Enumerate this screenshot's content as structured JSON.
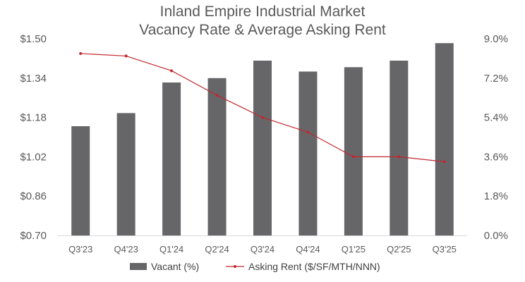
{
  "chart_data": {
    "type": "bar",
    "title": [
      "Inland Empire Industrial Market",
      "Vacancy Rate & Average Asking Rent"
    ],
    "categories": [
      "Q3'23",
      "Q4'23",
      "Q1'24",
      "Q2'24",
      "Q3'24",
      "Q4'24",
      "Q1'25",
      "Q2'25",
      "Q3'25"
    ],
    "y_left": {
      "min": 0.7,
      "max": 1.5,
      "ticks": [
        "$1.50",
        "$1.34",
        "$1.18",
        "$1.02",
        "$0.86",
        "$0.70"
      ]
    },
    "y_right": {
      "min": 0.0,
      "max": 9.0,
      "ticks": [
        "9.0%",
        "7.2%",
        "5.4%",
        "3.6%",
        "1.8%",
        "0.0%"
      ]
    },
    "series": [
      {
        "name": "Vacant (%)",
        "type": "bar",
        "axis": "right",
        "color": "#666669",
        "values": [
          5.0,
          5.6,
          7.0,
          7.2,
          8.0,
          7.5,
          7.7,
          8.0,
          8.8
        ]
      },
      {
        "name": "Asking Rent ($/SF/MTH/NNN)",
        "type": "line",
        "axis": "left",
        "color": "#c0282e",
        "values": [
          1.44,
          1.43,
          1.37,
          1.27,
          1.18,
          1.12,
          1.02,
          1.02,
          1.0
        ]
      }
    ],
    "grid": false,
    "legend_position": "bottom"
  }
}
